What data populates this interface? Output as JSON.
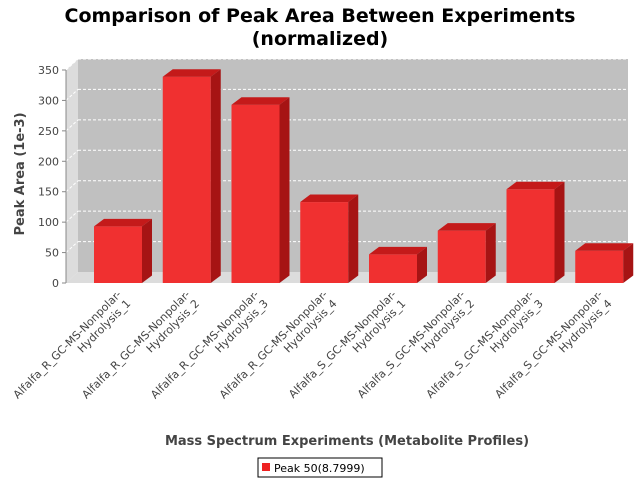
{
  "chart_data": {
    "type": "bar",
    "title_line1": "Comparison of Peak Area Between Experiments",
    "title_line2": "(normalized)",
    "xlabel": "Mass Spectrum Experiments (Metabolite Profiles)",
    "ylabel": "Peak Area (1e-3)",
    "ylim": [
      0,
      350
    ],
    "yticks": [
      0,
      50,
      100,
      150,
      200,
      250,
      300,
      350
    ],
    "grid": true,
    "legend_position": "bottom",
    "categories": [
      [
        "Alfalfa_R_GC-MS-Nonpolar-",
        "Hydrolysis_1"
      ],
      [
        "Alfalfa_R_GC-MS-Nonpolar-",
        "Hydrolysis_2"
      ],
      [
        "Alfalfa_R_GC-MS-Nonpolar-",
        "Hydrolysis_3"
      ],
      [
        "Alfalfa_R_GC-MS-Nonpolar-",
        "Hydrolysis_4"
      ],
      [
        "Alfalfa_S_GC-MS-Nonpolar-",
        "Hydrolysis_1"
      ],
      [
        "Alfalfa_S_GC-MS-Nonpolar-",
        "Hydrolysis_2"
      ],
      [
        "Alfalfa_S_GC-MS-Nonpolar-",
        "Hydrolysis_3"
      ],
      [
        "Alfalfa_S_GC-MS-Nonpolar-",
        "Hydrolysis_4"
      ]
    ],
    "series": [
      {
        "name": "Peak 50(8.7999)",
        "color": "#ee2222",
        "values": [
          93,
          339,
          293,
          133,
          47,
          86,
          154,
          53
        ]
      }
    ]
  }
}
